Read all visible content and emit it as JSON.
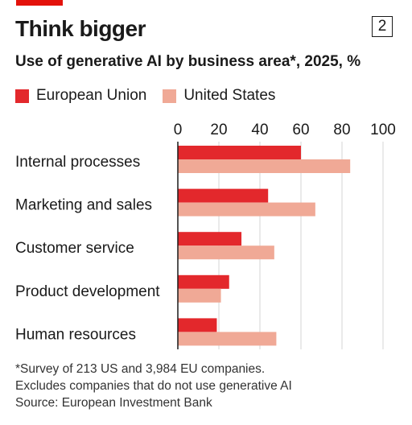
{
  "header": {
    "title": "Think bigger",
    "chart_number": "2",
    "subtitle": "Use of generative AI by business area*, 2025, %"
  },
  "legend": [
    {
      "label": "European Union",
      "color": "#e3282c"
    },
    {
      "label": "United States",
      "color": "#f0a996"
    }
  ],
  "chart_data": {
    "type": "bar",
    "orientation": "horizontal",
    "categories": [
      "Internal processes",
      "Marketing and sales",
      "Customer service",
      "Product development",
      "Human resources"
    ],
    "series": [
      {
        "name": "European Union",
        "color": "#e3282c",
        "values": [
          60,
          44,
          31,
          25,
          19
        ]
      },
      {
        "name": "United States",
        "color": "#f0a996",
        "values": [
          84,
          67,
          47,
          21,
          48
        ]
      }
    ],
    "xlim": [
      0,
      100
    ],
    "xticks": [
      0,
      20,
      40,
      60,
      80,
      100
    ],
    "grid": true,
    "legend_position": "top-left"
  },
  "footnotes": {
    "line1": "*Survey of 213 US and 3,984 EU companies.",
    "line2": "Excludes companies that do not use generative AI",
    "line3": "Source: European Investment Bank"
  }
}
